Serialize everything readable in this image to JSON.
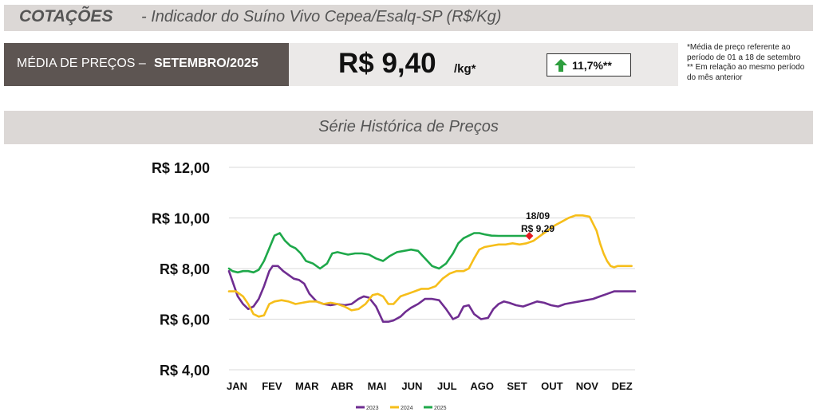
{
  "header": {
    "title_bold": "COTAÇÕES",
    "title_rest": "-  Indicador do Suíno Vivo Cepea/Esalq-SP (R$/Kg)"
  },
  "summary": {
    "label_prefix": "MÉDIA DE PREÇOS –",
    "label_period": "SETEMBRO/2025",
    "price": "R$ 9,40",
    "unit": "/kg*",
    "delta": "11,7%**",
    "delta_direction": "up",
    "delta_icon": "arrow-up-icon",
    "delta_color": "#2e9e3e"
  },
  "notes": {
    "note1": "*Média de preço referente ao período de 01 a 18 de setembro",
    "note2": "** Em relação ao mesmo período do mês anterior"
  },
  "chart_data": {
    "type": "line",
    "title": "Série Histórica de Preços",
    "categories": [
      "JAN",
      "FEV",
      "MAR",
      "ABR",
      "MAI",
      "JUN",
      "JUL",
      "AGO",
      "SET",
      "OUT",
      "NOV",
      "DEZ"
    ],
    "ylim": [
      4,
      12
    ],
    "yticks": [
      "R$ 4,00",
      "R$ 6,00",
      "R$ 8,00",
      "R$ 10,00",
      "R$ 12,00"
    ],
    "grid": true,
    "legend": "bottom",
    "annotation": {
      "date": "18/09",
      "value": "R$ 9,29"
    },
    "series": [
      {
        "name": "2023",
        "color": "#6f2d91",
        "x": [
          1.0,
          1.1,
          1.25,
          1.4,
          1.55,
          1.7,
          1.85,
          2.0,
          2.15,
          2.25,
          2.4,
          2.55,
          2.7,
          2.85,
          3.0,
          3.15,
          3.3,
          3.5,
          3.7,
          3.9,
          4.1,
          4.3,
          4.5,
          4.7,
          4.85,
          5.0,
          5.2,
          5.4,
          5.55,
          5.7,
          5.9,
          6.05,
          6.2,
          6.4,
          6.6,
          6.8,
          7.0,
          7.2,
          7.4,
          7.55,
          7.7,
          7.85,
          8.0,
          8.2,
          8.4,
          8.55,
          8.7,
          8.85,
          9.0,
          9.2,
          9.4,
          9.6,
          9.8,
          10.0,
          10.2,
          10.4,
          10.6,
          10.8,
          11.0,
          11.2,
          11.4,
          11.6,
          11.8,
          12.0,
          12.2,
          12.4,
          12.6
        ],
        "values": [
          7.9,
          7.5,
          6.9,
          6.6,
          6.4,
          6.5,
          6.8,
          7.3,
          7.9,
          8.1,
          8.1,
          7.9,
          7.75,
          7.6,
          7.55,
          7.4,
          7.0,
          6.7,
          6.6,
          6.55,
          6.6,
          6.55,
          6.6,
          6.8,
          6.9,
          6.85,
          6.5,
          5.9,
          5.9,
          5.95,
          6.1,
          6.3,
          6.45,
          6.6,
          6.8,
          6.8,
          6.75,
          6.4,
          6.0,
          6.1,
          6.5,
          6.55,
          6.2,
          6.0,
          6.05,
          6.4,
          6.6,
          6.7,
          6.65,
          6.55,
          6.5,
          6.6,
          6.7,
          6.65,
          6.55,
          6.5,
          6.6,
          6.65,
          6.7,
          6.75,
          6.8,
          6.9,
          7.0,
          7.1,
          7.1,
          7.1,
          7.1
        ]
      },
      {
        "name": "2024",
        "color": "#f6be1a",
        "x": [
          1.0,
          1.2,
          1.4,
          1.55,
          1.7,
          1.85,
          2.0,
          2.15,
          2.3,
          2.5,
          2.7,
          2.9,
          3.1,
          3.3,
          3.5,
          3.7,
          3.9,
          4.1,
          4.3,
          4.5,
          4.7,
          4.9,
          5.1,
          5.25,
          5.4,
          5.55,
          5.7,
          5.9,
          6.1,
          6.3,
          6.5,
          6.7,
          6.9,
          7.1,
          7.3,
          7.5,
          7.7,
          7.85,
          8.0,
          8.15,
          8.3,
          8.5,
          8.7,
          8.9,
          9.1,
          9.3,
          9.5,
          9.7,
          9.9,
          10.1,
          10.3,
          10.5,
          10.7,
          10.9,
          11.1,
          11.3,
          11.5,
          11.6,
          11.7,
          11.8,
          11.9,
          12.0,
          12.1,
          12.2,
          12.35,
          12.5
        ],
        "values": [
          7.1,
          7.1,
          6.9,
          6.6,
          6.2,
          6.1,
          6.15,
          6.6,
          6.7,
          6.75,
          6.7,
          6.6,
          6.65,
          6.7,
          6.7,
          6.6,
          6.65,
          6.6,
          6.5,
          6.35,
          6.4,
          6.6,
          6.95,
          7.0,
          6.9,
          6.6,
          6.6,
          6.9,
          7.0,
          7.1,
          7.2,
          7.2,
          7.3,
          7.6,
          7.8,
          7.9,
          7.9,
          8.0,
          8.4,
          8.75,
          8.85,
          8.9,
          8.95,
          8.95,
          9.0,
          8.95,
          9.0,
          9.1,
          9.3,
          9.5,
          9.7,
          9.85,
          10.0,
          10.1,
          10.1,
          10.05,
          9.5,
          9.0,
          8.6,
          8.3,
          8.1,
          8.05,
          8.1,
          8.1,
          8.1,
          8.1
        ]
      },
      {
        "name": "2025",
        "color": "#1ea84a",
        "x": [
          1.0,
          1.1,
          1.25,
          1.4,
          1.55,
          1.7,
          1.85,
          2.0,
          2.15,
          2.3,
          2.45,
          2.6,
          2.75,
          2.9,
          3.05,
          3.2,
          3.4,
          3.6,
          3.8,
          3.95,
          4.1,
          4.25,
          4.4,
          4.6,
          4.8,
          5.0,
          5.2,
          5.4,
          5.6,
          5.8,
          6.0,
          6.2,
          6.4,
          6.6,
          6.8,
          7.0,
          7.2,
          7.4,
          7.55,
          7.7,
          7.85,
          8.0,
          8.15,
          8.3,
          8.5,
          8.7,
          8.9,
          9.1,
          9.3,
          9.45,
          9.58
        ],
        "values": [
          8.0,
          7.9,
          7.85,
          7.9,
          7.9,
          7.85,
          7.95,
          8.3,
          8.8,
          9.3,
          9.4,
          9.1,
          8.9,
          8.8,
          8.6,
          8.3,
          8.2,
          8.0,
          8.2,
          8.6,
          8.65,
          8.6,
          8.55,
          8.6,
          8.6,
          8.55,
          8.4,
          8.3,
          8.5,
          8.65,
          8.7,
          8.75,
          8.7,
          8.4,
          8.1,
          8.0,
          8.2,
          8.6,
          9.0,
          9.2,
          9.3,
          9.4,
          9.4,
          9.35,
          9.3,
          9.29,
          9.29,
          9.29,
          9.29,
          9.29,
          9.29
        ]
      }
    ]
  }
}
